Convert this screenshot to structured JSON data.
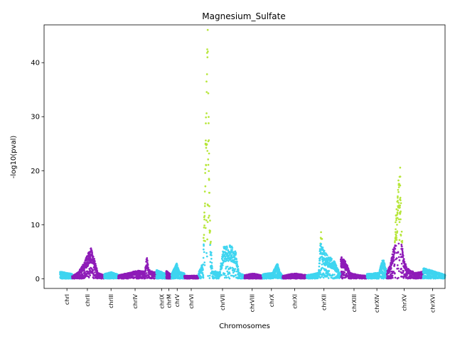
{
  "chart_data": {
    "type": "scatter",
    "title": "Magnesium_Sulfate",
    "xlabel": "Chromosomes",
    "ylabel": "-log10(pval)",
    "ylim": [
      -1.8,
      47.0
    ],
    "yticks": [
      0,
      10,
      20,
      30,
      40
    ],
    "xlim": [
      0,
      1000
    ],
    "grid": false,
    "colors": {
      "cyan": "#3fd5f0",
      "purple": "#8e1cb8",
      "lime": "#b7e63a"
    },
    "chromosomes": [
      {
        "name": "chrI",
        "start": 40,
        "end": 70,
        "color": "cyan",
        "tick": 57,
        "profile": [
          [
            0,
            1.2
          ],
          [
            1,
            0.8
          ]
        ]
      },
      {
        "name": "chrII",
        "start": 70,
        "end": 150,
        "color": "purple",
        "tick": 108,
        "profile": [
          [
            0,
            0.4
          ],
          [
            0.2,
            1.2
          ],
          [
            0.35,
            2.5
          ],
          [
            0.5,
            4.3
          ],
          [
            0.6,
            5.5
          ],
          [
            0.7,
            3.2
          ],
          [
            0.8,
            1.0
          ],
          [
            1,
            0.6
          ]
        ]
      },
      {
        "name": "chrIII",
        "start": 150,
        "end": 185,
        "color": "cyan",
        "tick": 167,
        "profile": [
          [
            0,
            0.8
          ],
          [
            0.5,
            1.1
          ],
          [
            1,
            0.7
          ]
        ]
      },
      {
        "name": "chrIV",
        "start": 185,
        "end": 280,
        "color": "purple",
        "tick": 227,
        "profile": [
          [
            0,
            0.6
          ],
          [
            0.3,
            1.0
          ],
          [
            0.5,
            1.4
          ],
          [
            0.7,
            1.2
          ],
          [
            0.75,
            3.8
          ],
          [
            0.8,
            1.5
          ],
          [
            1,
            1.0
          ]
        ]
      },
      {
        "name": "chrIX",
        "start": 280,
        "end": 305,
        "color": "cyan",
        "tick": 293,
        "profile": [
          [
            0,
            1.5
          ],
          [
            1,
            0.8
          ]
        ]
      },
      {
        "name": "chrM",
        "start": 305,
        "end": 318,
        "color": "purple",
        "tick": 311,
        "profile": [
          [
            0,
            1.3
          ],
          [
            1,
            0.6
          ]
        ]
      },
      {
        "name": "chrV",
        "start": 318,
        "end": 350,
        "color": "cyan",
        "tick": 332,
        "profile": [
          [
            0,
            0.8
          ],
          [
            0.4,
            2.6
          ],
          [
            0.6,
            1.2
          ],
          [
            1,
            0.9
          ]
        ]
      },
      {
        "name": "chrVI",
        "start": 350,
        "end": 385,
        "color": "purple",
        "tick": 367,
        "profile": [
          [
            0,
            0.5
          ],
          [
            1,
            0.5
          ]
        ]
      },
      {
        "name": "chrVII",
        "start": 385,
        "end": 500,
        "color": "cyan",
        "tick": 445,
        "profile": [
          [
            0,
            1.0
          ],
          [
            0.1,
            3.0
          ],
          [
            0.14,
            22.0
          ],
          [
            0.2,
            44.0
          ],
          [
            0.25,
            10.0
          ],
          [
            0.3,
            1.5
          ],
          [
            0.45,
            1.0
          ],
          [
            0.55,
            5.5
          ],
          [
            0.7,
            5.8
          ],
          [
            0.8,
            5.0
          ],
          [
            0.88,
            1.0
          ],
          [
            1,
            0.6
          ]
        ]
      },
      {
        "name": "chrVIII",
        "start": 500,
        "end": 545,
        "color": "purple",
        "tick": 519,
        "profile": [
          [
            0,
            0.6
          ],
          [
            0.5,
            0.9
          ],
          [
            1,
            0.5
          ]
        ]
      },
      {
        "name": "chrX",
        "start": 545,
        "end": 595,
        "color": "cyan",
        "tick": 567,
        "profile": [
          [
            0,
            0.8
          ],
          [
            0.5,
            1.0
          ],
          [
            0.75,
            2.7
          ],
          [
            0.85,
            1.2
          ],
          [
            1,
            0.5
          ]
        ]
      },
      {
        "name": "chrXI",
        "start": 595,
        "end": 655,
        "color": "purple",
        "tick": 625,
        "profile": [
          [
            0,
            0.5
          ],
          [
            0.5,
            0.9
          ],
          [
            1,
            0.6
          ]
        ]
      },
      {
        "name": "chrXII",
        "start": 655,
        "end": 740,
        "color": "cyan",
        "tick": 698,
        "profile": [
          [
            0,
            0.6
          ],
          [
            0.35,
            1.0
          ],
          [
            0.42,
            8.5
          ],
          [
            0.48,
            5.0
          ],
          [
            0.6,
            4.0
          ],
          [
            0.8,
            3.2
          ],
          [
            0.95,
            1.2
          ],
          [
            1,
            0.8
          ]
        ]
      },
      {
        "name": "chrXIII",
        "start": 740,
        "end": 805,
        "color": "purple",
        "tick": 773,
        "profile": [
          [
            0,
            3.8
          ],
          [
            0.2,
            2.8
          ],
          [
            0.35,
            1.0
          ],
          [
            0.7,
            0.6
          ],
          [
            1,
            0.5
          ]
        ]
      },
      {
        "name": "chrXIV",
        "start": 805,
        "end": 855,
        "color": "cyan",
        "tick": 830,
        "profile": [
          [
            0,
            0.8
          ],
          [
            0.6,
            1.0
          ],
          [
            0.8,
            3.5
          ],
          [
            0.9,
            2.5
          ],
          [
            1,
            1.2
          ]
        ]
      },
      {
        "name": "chrXV",
        "start": 855,
        "end": 945,
        "color": "purple",
        "tick": 898,
        "profile": [
          [
            0,
            1.2
          ],
          [
            0.1,
            2.5
          ],
          [
            0.2,
            6.0
          ],
          [
            0.32,
            17.0
          ],
          [
            0.37,
            19.5
          ],
          [
            0.4,
            9.0
          ],
          [
            0.45,
            4.0
          ],
          [
            0.55,
            1.8
          ],
          [
            0.8,
            1.0
          ],
          [
            1,
            1.2
          ]
        ]
      },
      {
        "name": "chrXVI",
        "start": 945,
        "end": 1000,
        "color": "cyan",
        "tick": 969,
        "profile": [
          [
            0,
            1.8
          ],
          [
            0.4,
            1.4
          ],
          [
            0.8,
            0.9
          ],
          [
            1,
            0.7
          ]
        ]
      }
    ],
    "points_per_chromosome": 520
  }
}
